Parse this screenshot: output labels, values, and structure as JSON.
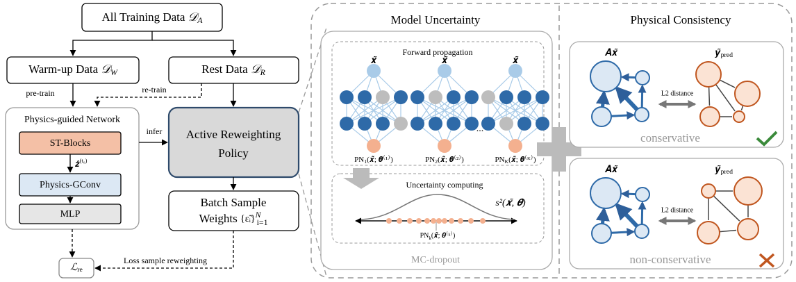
{
  "left": {
    "all_data": {
      "label": "All Training Data",
      "symbol": "𝒟",
      "sub": "A"
    },
    "warmup": {
      "label": "Warm-up Data",
      "symbol": "𝒟",
      "sub": "W"
    },
    "rest": {
      "label": "Rest Data",
      "symbol": "𝒟",
      "sub": "R"
    },
    "pretrain": "pre-train",
    "retrain": "re-train",
    "infer": "infer",
    "network": {
      "title": "Physics-guided Network",
      "blocks": [
        "ST-Blocks",
        "Physics-GConv",
        "MLP"
      ],
      "latent": {
        "symbol": "𝒛̂",
        "sup": "(t₀)"
      }
    },
    "policy": [
      "Active Reweighting",
      "Policy"
    ],
    "weights": {
      "line1": "Batch Sample",
      "line2": "Weights",
      "set": "{ε̃ᵢ}",
      "sup": "N",
      "sub": "i=1"
    },
    "loss": {
      "text": "Loss sample reweighting",
      "symbol": "ℒ",
      "sub": "re"
    }
  },
  "uncertainty": {
    "title": "Model Uncertainty",
    "forward": "Forward propagation",
    "inputs": [
      "𝒙̃",
      "𝒙̃",
      "𝒙̃"
    ],
    "networks": [
      {
        "name": "PN",
        "sub": "1",
        "args": "(𝒙̃; 𝜽⁽¹⁾)"
      },
      {
        "name": "PN",
        "sub": "2",
        "args": "(𝒙̃; 𝜽⁽²⁾)"
      },
      {
        "name": "PN",
        "sub": "K",
        "args": "(𝒙̃; 𝜽⁽ᴷ⁾)"
      }
    ],
    "ellipsis": "...",
    "computing": "Uncertainty computing",
    "variance": "s²(𝒙̃, 𝜽)",
    "sample": {
      "name": "PN",
      "sub": "k",
      "args": "(𝒙̃; 𝜽⁽ᵏ⁾)"
    },
    "method": "MC-dropout"
  },
  "consistency": {
    "title": "Physical Consistency",
    "panels": [
      {
        "input": "𝑨𝒙̃",
        "output": {
          "symbol": "𝒚̃",
          "sub": "pred"
        },
        "metric": "L2 distance",
        "verdict": "conservative"
      },
      {
        "input": "𝑨𝒙̃",
        "output": {
          "symbol": "𝒚̃",
          "sub": "pred"
        },
        "metric": "L2 distance",
        "verdict": "non-conservative"
      }
    ]
  }
}
